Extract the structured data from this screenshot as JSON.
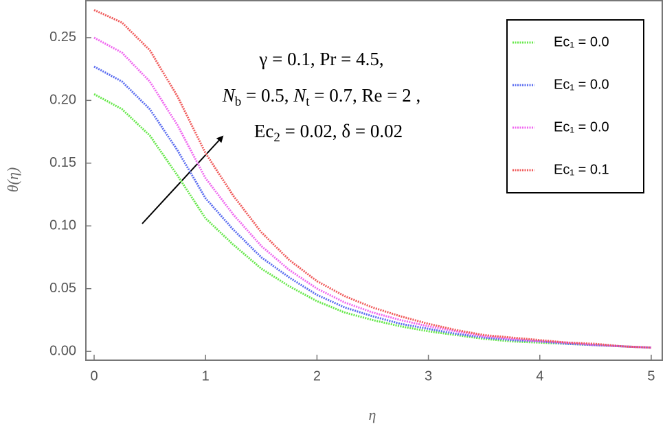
{
  "chart_data": {
    "type": "line",
    "xlabel": "η",
    "ylabel": "θ(η)",
    "annotation": [
      [
        "γ = 0.1,  Pr = 4.5,"
      ],
      [
        "N",
        "b",
        " = 0.5, ",
        "N",
        "t",
        " = 0.7, Re = 2 ,"
      ],
      [
        "Ec",
        "2",
        " = 0.02, δ = 0.02"
      ]
    ],
    "x": [
      0,
      0.25,
      0.5,
      0.75,
      1,
      1.25,
      1.5,
      1.75,
      2,
      2.25,
      2.5,
      2.75,
      3,
      3.25,
      3.5,
      3.75,
      4,
      4.25,
      4.5,
      4.75,
      5
    ],
    "series": [
      {
        "name": "Ec₁ = 0.0",
        "color": "#66e84a",
        "values": [
          0.205,
          0.193,
          0.172,
          0.14,
          0.106,
          0.085,
          0.066,
          0.052,
          0.04,
          0.031,
          0.025,
          0.02,
          0.016,
          0.013,
          0.01,
          0.008,
          0.007,
          0.006,
          0.005,
          0.004,
          0.003
        ]
      },
      {
        "name": "Ec₁ = 0.0",
        "color": "#5a6cf0",
        "values": [
          0.227,
          0.215,
          0.193,
          0.16,
          0.122,
          0.097,
          0.075,
          0.059,
          0.045,
          0.035,
          0.028,
          0.022,
          0.018,
          0.014,
          0.011,
          0.009,
          0.008,
          0.006,
          0.005,
          0.004,
          0.003
        ]
      },
      {
        "name": "Ec₁ = 0.0",
        "color": "#f066f0",
        "values": [
          0.25,
          0.238,
          0.215,
          0.18,
          0.138,
          0.109,
          0.084,
          0.065,
          0.05,
          0.039,
          0.031,
          0.025,
          0.02,
          0.016,
          0.012,
          0.01,
          0.008,
          0.007,
          0.005,
          0.004,
          0.003
        ]
      },
      {
        "name": "Ec₁ = 0.1",
        "color": "#f05a5a",
        "values": [
          0.272,
          0.262,
          0.24,
          0.203,
          0.158,
          0.124,
          0.095,
          0.073,
          0.056,
          0.044,
          0.035,
          0.028,
          0.022,
          0.017,
          0.013,
          0.011,
          0.009,
          0.007,
          0.006,
          0.004,
          0.003
        ]
      }
    ],
    "xlim": [
      -0.074,
      5.105
    ],
    "ylim": [
      -0.007,
      0.28
    ],
    "xticks": [
      0,
      1,
      2,
      3,
      4,
      5
    ],
    "yticks": [
      {
        "value": 0,
        "label": "0.00"
      },
      {
        "value": 0.05,
        "label": "0.05"
      },
      {
        "value": 0.1,
        "label": "0.10"
      },
      {
        "value": 0.15,
        "label": "0.15"
      },
      {
        "value": 0.2,
        "label": "0.20"
      },
      {
        "value": 0.25,
        "label": "0.25"
      }
    ],
    "legend": "upper right"
  }
}
